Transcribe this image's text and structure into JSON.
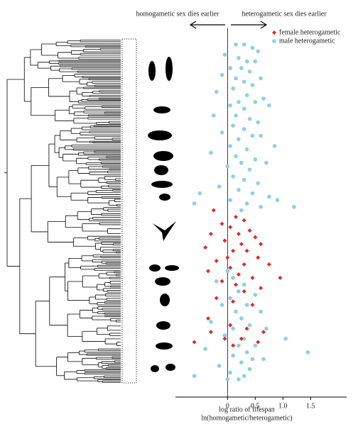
{
  "chart_data": {
    "type": "scatter",
    "title_left": "homogametic sex dies earlier",
    "title_right": "heterogametic sex dies earlier",
    "xlabel": [
      "log ratio of lifespan",
      "ln(homogametic/heterogametic)"
    ],
    "xlim": [
      -0.94,
      2.15
    ],
    "xticks": [
      0,
      0.5,
      {
        "value": 1,
        "label": "1.0"
      },
      1.5
    ],
    "ylim": [
      0,
      100
    ],
    "legend": "upper right",
    "series": [
      {
        "name": "female heterogametic",
        "color": "#dd2a2a",
        "marker": "diamond",
        "x": [
          -0.25,
          0.15,
          0.3,
          -0.1,
          0.05,
          0.4,
          -0.3,
          0.2,
          0.5,
          -0.05,
          0.25,
          0.6,
          -0.4,
          0.1,
          0.35,
          0.0,
          0.55,
          -0.2,
          0.3,
          0.75,
          0.05,
          -0.35,
          0.2,
          0.45,
          0.95,
          -0.1,
          0.15,
          0.6,
          0.3,
          -0.2,
          0.1,
          0.45,
          -0.35,
          0.05,
          0.35,
          0.65,
          -0.05,
          0.25,
          -0.6,
          0.55,
          0.1,
          -0.3
        ],
        "y": [
          50,
          52,
          53,
          54,
          55,
          56,
          57,
          57,
          58,
          59,
          60,
          60,
          61,
          62,
          62,
          64,
          64,
          65,
          66,
          66,
          67,
          68,
          69,
          70,
          70,
          71,
          72,
          73,
          74,
          76,
          77,
          78,
          82,
          84,
          85,
          86,
          88,
          88,
          89,
          89,
          90,
          86
        ]
      },
      {
        "name": "male heterogametic",
        "color": "#8ccfe8",
        "marker": "circle",
        "x": [
          0.15,
          0.3,
          0.45,
          0.55,
          -0.05,
          0.2,
          0.35,
          0.5,
          0.05,
          0.25,
          0.4,
          -0.1,
          0.15,
          0.6,
          0.3,
          0.45,
          0.1,
          -0.2,
          0.35,
          0.65,
          0.2,
          0.5,
          0.05,
          0.3,
          0.75,
          -0.25,
          0.15,
          0.4,
          0.55,
          0.1,
          0.3,
          -0.1,
          0.45,
          0.6,
          0.2,
          0.85,
          0.05,
          0.35,
          -0.3,
          0.15,
          0.5,
          0.25,
          0.7,
          0.0,
          0.4,
          0.1,
          0.3,
          0.55,
          -0.15,
          0.2,
          0.45,
          0.75,
          0.05,
          0.35,
          1.2,
          -0.5,
          0.9,
          -0.6,
          0.6,
          0.25,
          0.0,
          0.1,
          -0.2,
          0.3,
          0.2,
          0.5,
          0.05,
          -0.1,
          0.35,
          0.15,
          0.6,
          0.25,
          -0.3,
          0.4,
          0.1,
          0.7,
          -0.05,
          0.3,
          1.05,
          0.2,
          0.5,
          -0.4,
          0.35,
          1.45,
          0.1,
          0.45,
          0.65,
          0.25,
          -0.15,
          0.4,
          0.05,
          -0.6,
          0.3,
          0.0,
          0.2
        ],
        "y": [
          1,
          1,
          2,
          3,
          4,
          5,
          6,
          6,
          8,
          8,
          9,
          10,
          11,
          11,
          12,
          13,
          14,
          15,
          16,
          17,
          18,
          18,
          19,
          20,
          19,
          22,
          22,
          23,
          24,
          25,
          26,
          27,
          28,
          28,
          29,
          31,
          31,
          32,
          33,
          34,
          35,
          36,
          36,
          37,
          38,
          40,
          41,
          42,
          43,
          44,
          45,
          46,
          47,
          48,
          49,
          45,
          47,
          48,
          49,
          50,
          68,
          70,
          71,
          72,
          74,
          75,
          76,
          78,
          78,
          80,
          80,
          82,
          83,
          84,
          85,
          85,
          87,
          88,
          88,
          90,
          90,
          91,
          92,
          92,
          93,
          94,
          94,
          95,
          96,
          97,
          98,
          99,
          99,
          100,
          100
        ]
      }
    ]
  }
}
